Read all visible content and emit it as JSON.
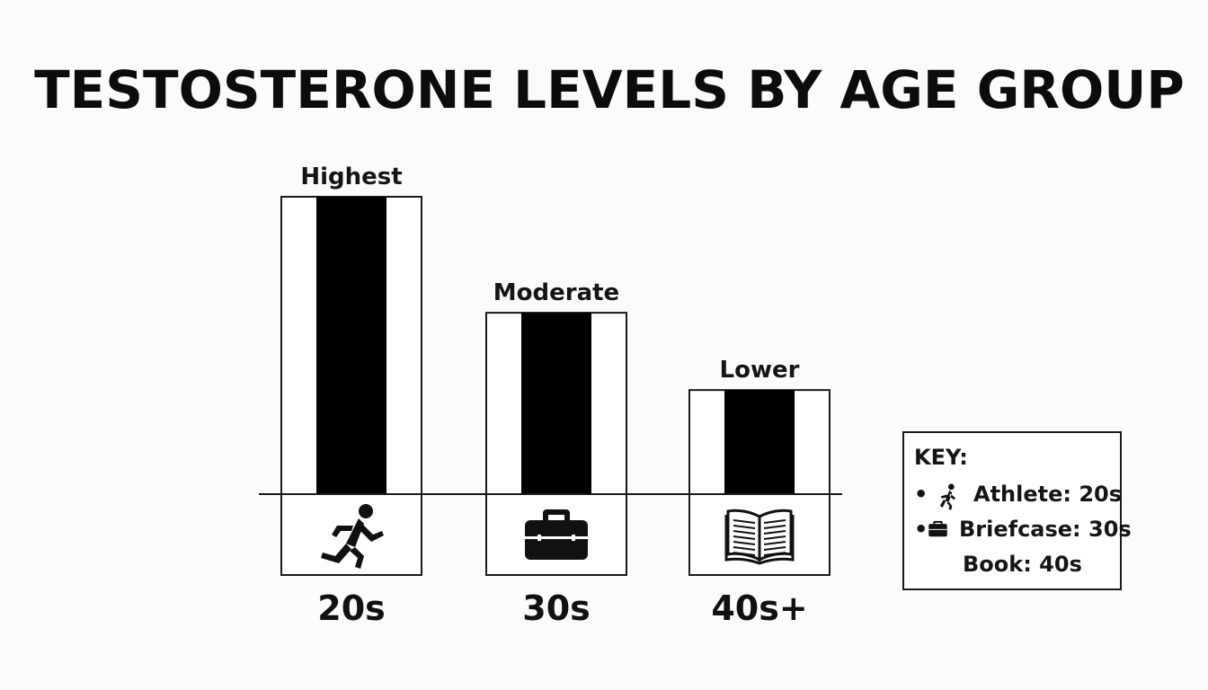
{
  "chart_data": {
    "type": "bar",
    "title": "TESTOSTERONE LEVELS BY AGE GROUP",
    "categories": [
      "20s",
      "30s",
      "40s+"
    ],
    "values": [
      100,
      61,
      35
    ],
    "value_labels": [
      "Highest",
      "Moderate",
      "Lower"
    ],
    "icons": [
      "running-person-icon",
      "briefcase-icon",
      "open-book-icon"
    ],
    "xlabel": "",
    "ylabel": "",
    "grid": false,
    "legend_position": "right"
  },
  "key": {
    "title": "KEY:",
    "items": [
      {
        "bullet": "•",
        "icon": "running-person-icon",
        "text": "Athlete: 20s"
      },
      {
        "bullet": "•",
        "icon": "briefcase-icon",
        "text": "Briefcase: 30s"
      },
      {
        "bullet": "",
        "icon": "",
        "text": "Book: 40s"
      }
    ]
  },
  "colors": {
    "bar_fill": "#000000",
    "outline": "#1a1a1a",
    "background": "#fbfbfb"
  }
}
